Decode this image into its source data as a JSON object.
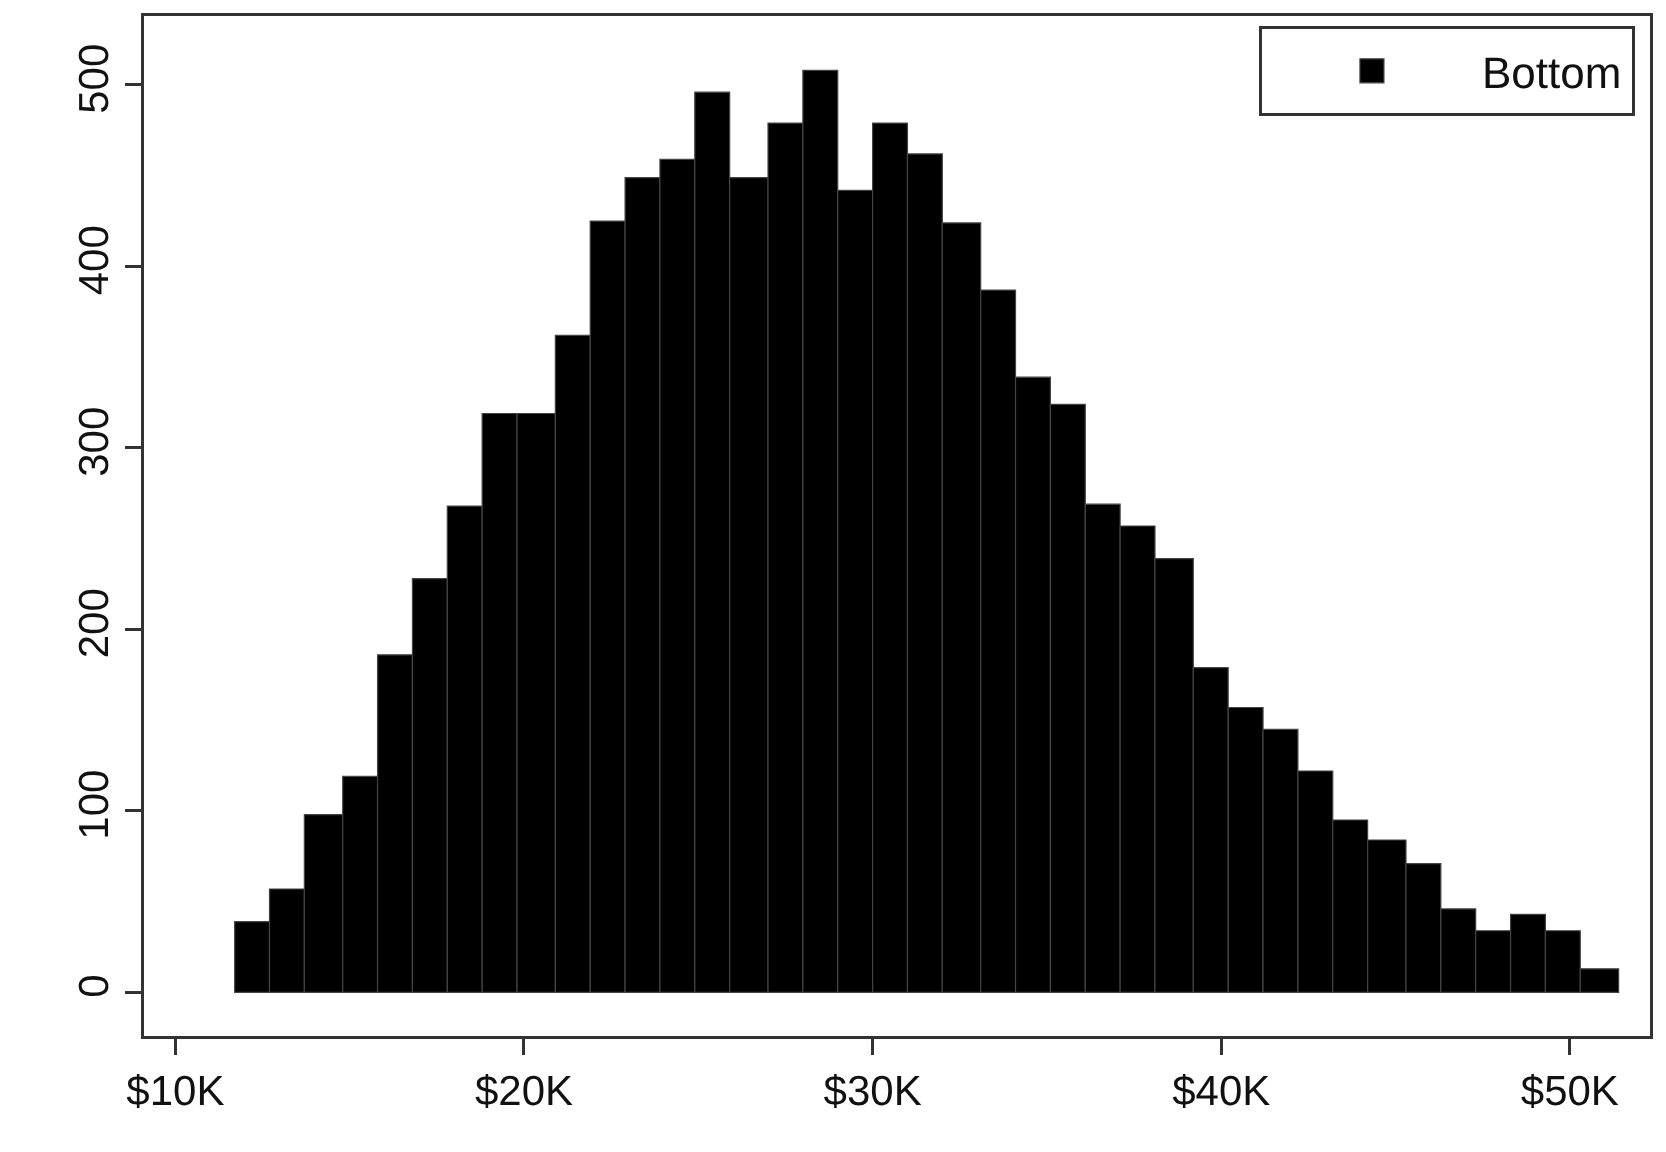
{
  "chart_data": {
    "type": "histogram",
    "bins": [
      11.7,
      12.7,
      13.7,
      14.8,
      15.8,
      16.8,
      17.8,
      18.8,
      19.8,
      20.9,
      21.9,
      22.9,
      23.9,
      24.9,
      25.9,
      27.0,
      28.0,
      29.0,
      30.0,
      31.0,
      32.0,
      33.1,
      34.1,
      35.1,
      36.1,
      37.1,
      38.1,
      39.2,
      40.2,
      41.2,
      42.2,
      43.2,
      44.2,
      45.3,
      46.3,
      47.3,
      48.3,
      49.3,
      50.3,
      51.4
    ],
    "series": [
      {
        "name": "Bottom",
        "color": "#000000",
        "values": [
          39,
          57,
          98,
          119,
          186,
          228,
          268,
          319,
          319,
          362,
          425,
          449,
          459,
          496,
          449,
          479,
          508,
          442,
          479,
          462,
          424,
          387,
          339,
          324,
          269,
          257,
          239,
          179,
          157,
          145,
          122,
          95,
          84,
          71,
          46,
          34,
          43,
          34,
          13
        ]
      }
    ],
    "xlim": [
      9.1,
      52.3
    ],
    "xticks": [
      {
        "value": 10,
        "label": "$10K"
      },
      {
        "value": 20,
        "label": "$20K"
      },
      {
        "value": 30,
        "label": "$30K"
      },
      {
        "value": 40,
        "label": "$40K"
      },
      {
        "value": 50,
        "label": "$50K"
      }
    ],
    "ylim": [
      -24,
      538
    ],
    "yticks": [
      0,
      100,
      200,
      300,
      400,
      500
    ],
    "grid": false,
    "legend": "top right"
  }
}
